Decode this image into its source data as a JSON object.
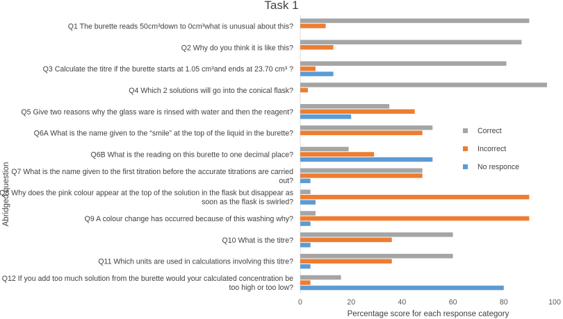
{
  "chart_data": {
    "type": "bar",
    "orientation": "horizontal",
    "title": "Task 1",
    "xlabel": "Percentage score for each response category",
    "ylabel": "Abridged question",
    "xlim": [
      0,
      100
    ],
    "xticks": [
      "0",
      "20",
      "40",
      "60",
      "80",
      "100"
    ],
    "grid": false,
    "legend_position": "right",
    "categories": [
      [
        "Q1 The burette reads 50cm³down to 0cm³what is unusual about this?"
      ],
      [
        "Q2 Why do you think it is like this?"
      ],
      [
        "Q3 Calculate the titre if the burette starts at 1.05 cm³and ends at 23.70 cm³ ?"
      ],
      [
        "Q4 Which 2 solutions will go into the conical flask?"
      ],
      [
        "Q5 Give two reasons why the glass ware is rinsed with water and then the reagent?"
      ],
      [
        "Q6A What is the name given to the “smile” at the top of the liquid in the burette?"
      ],
      [
        "Q6B What is the reading on this burette to one decimal place?"
      ],
      [
        "Q7 What is the name given to the first titration before the accurate titrations are carried",
        "out?"
      ],
      [
        "Q8 Why does the pink colour appear at the top of the solution in the flask but disappear as",
        "soon as the flask is swirled?"
      ],
      [
        "Q9 A colour change has occurred because of this washing why?"
      ],
      [
        "Q10 What is the titre?"
      ],
      [
        "Q11 Which units are used in calculations involving this titre?"
      ],
      [
        "Q12 If you add too much solution from the burette would your calculated concentration be",
        "too high or too low?"
      ]
    ],
    "series": [
      {
        "name": "Correct",
        "color": "#a5a5a5",
        "values": [
          90,
          87,
          81,
          97,
          35,
          52,
          19,
          48,
          4,
          6,
          60,
          60,
          16
        ]
      },
      {
        "name": "Incorrect",
        "color": "#ed7d31",
        "values": [
          10,
          13,
          6,
          3,
          45,
          48,
          29,
          48,
          90,
          90,
          36,
          36,
          4
        ]
      },
      {
        "name": "No responce",
        "color": "#5b9bd5",
        "values": [
          0,
          0,
          13,
          0,
          20,
          0,
          52,
          4,
          6,
          4,
          4,
          4,
          80
        ]
      }
    ]
  }
}
